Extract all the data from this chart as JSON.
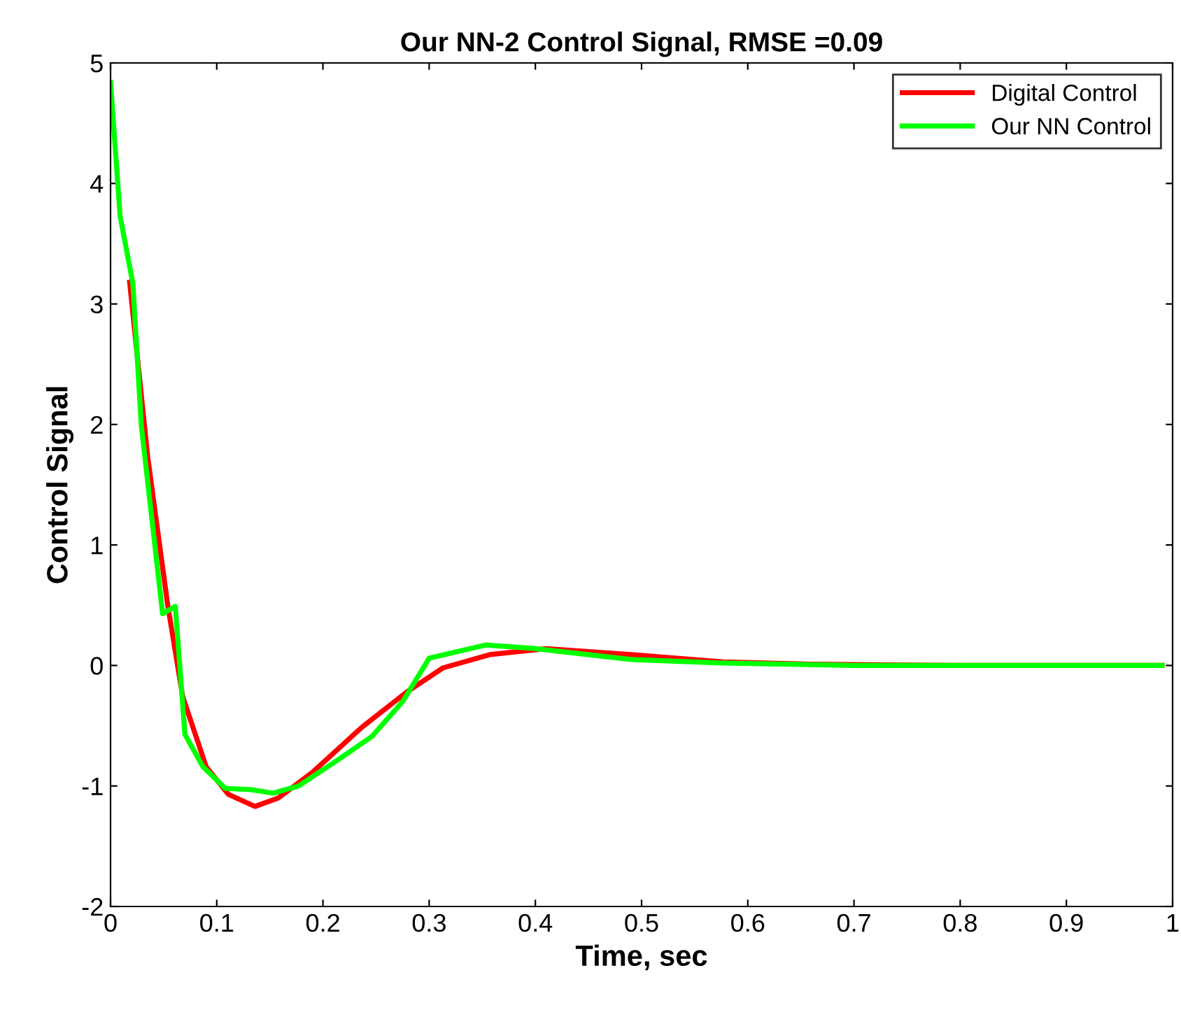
{
  "chart_data": {
    "type": "line",
    "title": "Our NN-2 Control Signal, RMSE =0.09",
    "xlabel": "Time, sec",
    "ylabel": "Control Signal",
    "xlim": [
      0,
      1
    ],
    "xticks": [
      0,
      0.1,
      0.2,
      0.3,
      0.4,
      0.5,
      0.6,
      0.7,
      0.8,
      0.9,
      1
    ],
    "ylim": [
      -2,
      5
    ],
    "yticks": [
      -2,
      -1,
      0,
      1,
      2,
      3,
      4,
      5
    ],
    "grid": false,
    "legend": "top right",
    "marker": "none",
    "line_style": "solid",
    "series": [
      {
        "name": "Digital Control",
        "color": "#ff0000",
        "x": [
          0.018,
          0.035,
          0.054,
          0.068,
          0.09,
          0.111,
          0.136,
          0.158,
          0.191,
          0.237,
          0.279,
          0.313,
          0.357,
          0.41,
          0.49,
          0.577,
          0.66,
          0.8,
          0.99
        ],
        "values": [
          3.18,
          1.73,
          0.49,
          -0.26,
          -0.84,
          -1.07,
          -1.17,
          -1.1,
          -0.88,
          -0.51,
          -0.22,
          -0.02,
          0.09,
          0.14,
          0.09,
          0.03,
          0.01,
          0,
          0
        ]
      },
      {
        "name": "Our NN Control",
        "color": "#00ff00",
        "x": [
          0,
          0.009,
          0.021,
          0.029,
          0.049,
          0.061,
          0.07,
          0.087,
          0.108,
          0.132,
          0.153,
          0.177,
          0.213,
          0.246,
          0.275,
          0.3,
          0.353,
          0.4,
          0.49,
          0.577,
          0.7,
          0.99
        ],
        "values": [
          4.84,
          3.73,
          3.17,
          1.99,
          0.43,
          0.49,
          -0.57,
          -0.84,
          -1.02,
          -1.03,
          -1.06,
          -1.0,
          -0.79,
          -0.59,
          -0.3,
          0.06,
          0.17,
          0.14,
          0.05,
          0.02,
          0,
          0
        ]
      }
    ]
  }
}
